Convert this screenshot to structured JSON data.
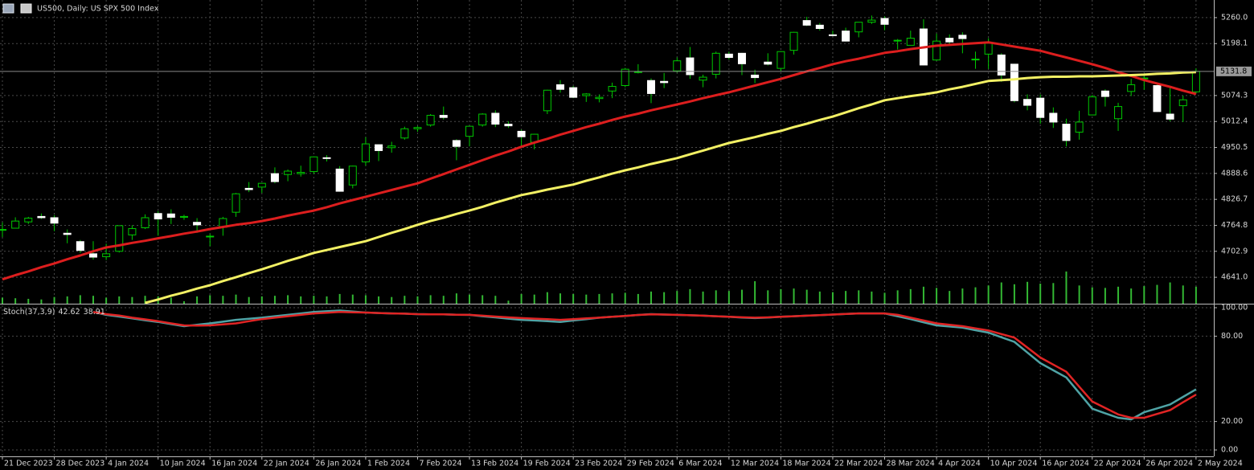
{
  "chart_data": [
    {
      "type": "candlestick",
      "title": "US500, Daily:  US SPX 500 Index",
      "categories": [
        "21 Dec 2023",
        null,
        null,
        null,
        "28 Dec 2023",
        null,
        null,
        null,
        "4 Jan 2024",
        null,
        null,
        null,
        "10 Jan 2024",
        null,
        null,
        null,
        "16 Jan 2024",
        null,
        null,
        null,
        "22 Jan 2024",
        null,
        null,
        null,
        "26 Jan 2024",
        null,
        null,
        null,
        "1 Feb 2024",
        null,
        null,
        null,
        "7 Feb 2024",
        null,
        null,
        null,
        "13 Feb 2024",
        null,
        null,
        null,
        "19 Feb 2024",
        null,
        null,
        null,
        "23 Feb 2024",
        null,
        null,
        null,
        "29 Feb 2024",
        null,
        null,
        null,
        "6 Mar 2024",
        null,
        null,
        null,
        "12 Mar 2024",
        null,
        null,
        null,
        "18 Mar 2024",
        null,
        null,
        null,
        "22 Mar 2024",
        null,
        null,
        null,
        "28 Mar 2024",
        null,
        null,
        null,
        "4 Apr 2024",
        null,
        null,
        null,
        "10 Apr 2024",
        null,
        null,
        null,
        "16 Apr 2024",
        null,
        null,
        null,
        "22 Apr 2024",
        null,
        null,
        null,
        "26 Apr 2024",
        null,
        null,
        null,
        "2 May 2024"
      ],
      "open": [
        4753,
        4758,
        4773,
        4786,
        4783,
        4746,
        4726,
        4697,
        4690,
        4703,
        4742,
        4759,
        4793,
        4792,
        4784,
        4772,
        4739,
        4760,
        4796,
        4853,
        4856,
        4888,
        4886,
        4888,
        4893,
        4926,
        4899,
        4861,
        4916,
        4957,
        4950,
        4973,
        4995,
        5004,
        5027,
        4967,
        4977,
        5004,
        5032,
        5006,
        4989,
        4963,
        5038,
        5100,
        5093,
        5074,
        5067,
        5085,
        5098,
        5131,
        5110,
        5108,
        5133,
        5164,
        5111,
        5125,
        5173,
        5175,
        5123,
        5154,
        5139,
        5182,
        5253,
        5242,
        5219,
        5228,
        5226,
        5249,
        5258,
        5206,
        5194,
        5233,
        5159,
        5211,
        5218,
        5161,
        5173,
        5171,
        5149,
        5065,
        5068,
        5032,
        5006,
        4987,
        5028,
        5085,
        5019,
        5084,
        5115,
        5098,
        5030,
        5050,
        5083
      ],
      "high": [
        4772,
        4784,
        4785,
        4793,
        4789,
        4755,
        4730,
        4727,
        4721,
        4764,
        4765,
        4791,
        4799,
        4803,
        4790,
        4782,
        4744,
        4785,
        4842,
        4868,
        4866,
        4903,
        4898,
        4907,
        4929,
        4932,
        4906,
        4907,
        4975,
        4958,
        4964,
        5000,
        5001,
        5030,
        5048,
        4970,
        5002,
        5032,
        5039,
        5013,
        4993,
        4983,
        5088,
        5111,
        5097,
        5080,
        5077,
        5105,
        5140,
        5149,
        5115,
        5128,
        5165,
        5190,
        5124,
        5179,
        5179,
        5176,
        5136,
        5175,
        5180,
        5226,
        5262,
        5247,
        5229,
        5236,
        5249,
        5265,
        5263,
        5209,
        5229,
        5256,
        5222,
        5220,
        5225,
        5179,
        5211,
        5175,
        5150,
        5077,
        5077,
        5046,
        5019,
        5038,
        5076,
        5089,
        5057,
        5114,
        5123,
        5102,
        5096,
        5074,
        5139
      ],
      "low": [
        4737,
        4758,
        4768,
        4780,
        4751,
        4722,
        4699,
        4683,
        4682,
        4700,
        4730,
        4756,
        4740,
        4768,
        4778,
        4747,
        4715,
        4740,
        4785,
        4844,
        4842,
        4865,
        4870,
        4881,
        4887,
        4917,
        4845,
        4853,
        4907,
        4918,
        4938,
        4969,
        4988,
        5000,
        5017,
        4920,
        4953,
        5000,
        4999,
        4997,
        4955,
        4946,
        5030,
        5081,
        5068,
        5059,
        5058,
        5068,
        5094,
        5127,
        5056,
        5092,
        5129,
        5114,
        5094,
        5115,
        5160,
        5123,
        5104,
        5146,
        5132,
        5172,
        5240,
        5229,
        5216,
        5203,
        5213,
        5245,
        5230,
        5184,
        5194,
        5146,
        5157,
        5197,
        5175,
        5138,
        5138,
        5107,
        5058,
        5039,
        5007,
        4997,
        4953,
        4969,
        5028,
        5048,
        4990,
        5073,
        5088,
        5035,
        5013,
        5011,
        5080
      ],
      "close": [
        4755,
        4775,
        4782,
        4783,
        4770,
        4743,
        4705,
        4689,
        4697,
        4764,
        4757,
        4783,
        4780,
        4784,
        4786,
        4766,
        4739,
        4781,
        4840,
        4850,
        4865,
        4869,
        4894,
        4891,
        4928,
        4925,
        4846,
        4906,
        4959,
        4943,
        4954,
        4995,
        4998,
        5027,
        5022,
        4953,
        5001,
        5030,
        5006,
        5002,
        4976,
        4982,
        5087,
        5089,
        5070,
        5078,
        5070,
        5096,
        5137,
        5131,
        5079,
        5105,
        5157,
        5124,
        5118,
        5175,
        5165,
        5150,
        5117,
        5149,
        5179,
        5225,
        5242,
        5234,
        5218,
        5204,
        5249,
        5254,
        5244,
        5206,
        5211,
        5147,
        5204,
        5202,
        5210,
        5161,
        5199,
        5123,
        5062,
        5051,
        5022,
        5011,
        4967,
        5011,
        5071,
        5072,
        5048,
        5100,
        5116,
        5036,
        5018,
        5064,
        5131.8
      ],
      "up_color": "#00c800",
      "down_color": "#ffffff",
      "volume": [
        10,
        9,
        8,
        7,
        11,
        12,
        14,
        13,
        10,
        12,
        11,
        13,
        12,
        10,
        4,
        12,
        14,
        13,
        15,
        11,
        12,
        13,
        14,
        12,
        13,
        12,
        16,
        15,
        14,
        12,
        11,
        13,
        12,
        14,
        13,
        17,
        15,
        14,
        13,
        5,
        16,
        15,
        19,
        17,
        16,
        15,
        16,
        17,
        18,
        16,
        20,
        19,
        21,
        24,
        20,
        22,
        21,
        23,
        37,
        22,
        24,
        25,
        23,
        20,
        19,
        21,
        22,
        20,
        18,
        22,
        24,
        28,
        26,
        21,
        25,
        27,
        30,
        35,
        32,
        36,
        33,
        34,
        53,
        30,
        27,
        26,
        28,
        25,
        29,
        31,
        35,
        30,
        28
      ],
      "volume_color": "#33b833",
      "vlim": [
        0,
        500
      ],
      "lines": [
        {
          "color": "#dc1e1e",
          "values": [
            4636,
            4646,
            4655,
            4665,
            4674,
            4684,
            4693,
            4703,
            4712,
            4717,
            4723,
            4728,
            4734,
            4739,
            4745,
            4750,
            4756,
            4761,
            4766,
            4770,
            4775,
            4781,
            4788,
            4794,
            4800,
            4808,
            4817,
            4825,
            4833,
            4841,
            4849,
            4857,
            4865,
            4876,
            4887,
            4898,
            4909,
            4920,
            4931,
            4941,
            4952,
            4962,
            4971,
            4981,
            4990,
            4999,
            5007,
            5016,
            5024,
            5031,
            5039,
            5046,
            5053,
            5060,
            5068,
            5075,
            5082,
            5090,
            5098,
            5106,
            5114,
            5123,
            5132,
            5140,
            5149,
            5156,
            5162,
            5169,
            5176,
            5180,
            5185,
            5189,
            5193,
            5195,
            5197,
            5199,
            5201,
            5196,
            5191,
            5186,
            5181,
            5173,
            5165,
            5157,
            5149,
            5140,
            5130,
            5121,
            5111,
            5103,
            5095,
            5086,
            5078
          ]
        },
        {
          "color": "#f2f064",
          "values": [
            null,
            null,
            null,
            null,
            null,
            null,
            null,
            null,
            null,
            null,
            null,
            4580,
            4588,
            4597,
            4605,
            4614,
            4622,
            4632,
            4641,
            4651,
            4660,
            4670,
            4680,
            4689,
            4699,
            4706,
            4713,
            4720,
            4727,
            4737,
            4747,
            4756,
            4766,
            4775,
            4783,
            4792,
            4800,
            4809,
            4819,
            4828,
            4837,
            4843,
            4850,
            4856,
            4862,
            4871,
            4879,
            4888,
            4896,
            4903,
            4911,
            4918,
            4925,
            4934,
            4943,
            4952,
            4961,
            4968,
            4975,
            4983,
            4990,
            4999,
            5007,
            5016,
            5024,
            5034,
            5044,
            5053,
            5063,
            5068,
            5073,
            5077,
            5082,
            5089,
            5095,
            5102,
            5109,
            5111,
            5113,
            5116,
            5118,
            5119,
            5119,
            5120,
            5120,
            5121,
            5122,
            5123,
            5124,
            5126,
            5127,
            5129,
            5130
          ]
        }
      ],
      "ylim": [
        4578,
        5302
      ],
      "yticks": [
        {
          "value": 5260,
          "label": "5260.0"
        },
        {
          "value": 5198.1,
          "label": "5198.1"
        },
        {
          "value": 5074.3,
          "label": "5074.3"
        },
        {
          "value": 5012.4,
          "label": "5012.4"
        },
        {
          "value": 4950.5,
          "label": "4950.5"
        },
        {
          "value": 4888.6,
          "label": "4888.6"
        },
        {
          "value": 4826.7,
          "label": "4826.7"
        },
        {
          "value": 4764.8,
          "label": "4764.8"
        },
        {
          "value": 4702.9,
          "label": "4702.9"
        },
        {
          "value": 4641,
          "label": "4641.0"
        }
      ],
      "grid": true
    },
    {
      "type": "line",
      "title": "Stoch(37,3,9)",
      "series": [
        {
          "color": "#4fa3a5",
          "values": [
            null,
            null,
            null,
            null,
            null,
            null,
            null,
            97,
            95,
            93.8,
            92.5,
            91.2,
            90,
            88.5,
            87,
            88,
            89,
            90.2,
            91.5,
            92.2,
            93,
            94,
            95,
            96,
            97,
            97.5,
            98,
            97.3,
            96.6,
            96.3,
            96,
            95.8,
            95.5,
            95.4,
            95.3,
            95.1,
            95,
            94,
            93.2,
            92.3,
            91.5,
            91,
            90.5,
            90,
            91,
            92,
            93,
            93.6,
            94.2,
            94.9,
            95.5,
            95.2,
            95,
            94.7,
            94.4,
            94,
            93.6,
            93.1,
            92.7,
            93.1,
            93.6,
            94,
            94.4,
            94.8,
            95.2,
            95.6,
            96,
            96,
            96,
            94,
            92,
            89.8,
            87.6,
            86.8,
            86,
            84.2,
            82.5,
            79.2,
            76,
            68.5,
            61,
            56,
            51,
            40,
            29,
            25.8,
            22.6,
            21.5,
            26.5,
            29.2,
            32,
            37.3,
            42.62
          ]
        },
        {
          "color": "#e02424",
          "values": [
            null,
            null,
            null,
            null,
            null,
            null,
            null,
            97,
            95.5,
            94.5,
            93,
            91.8,
            90.5,
            89,
            87.6,
            87.4,
            87.6,
            88.3,
            89,
            90.5,
            92,
            93,
            94,
            95,
            96,
            96.5,
            97,
            96.8,
            96.6,
            96.3,
            96,
            95.8,
            95.5,
            95.4,
            95.3,
            95.1,
            95,
            94.4,
            93.8,
            93.2,
            92.7,
            92.3,
            91.9,
            91.5,
            92,
            92.5,
            93,
            93.6,
            94.2,
            94.9,
            95.3,
            95.2,
            95,
            94.7,
            94.4,
            94,
            93.6,
            93.3,
            93,
            93.2,
            93.6,
            94,
            94.4,
            94.8,
            95.2,
            95.6,
            96,
            96,
            96,
            95,
            93,
            91,
            89,
            88,
            87,
            85.5,
            84,
            81.5,
            79,
            72,
            65,
            60,
            55,
            44.5,
            34,
            29.5,
            25,
            22.6,
            22.6,
            25.3,
            28,
            33.5,
            38.91
          ]
        }
      ],
      "ylim": [
        -4.5,
        101.7
      ],
      "yticks": [
        {
          "value": 100,
          "label": "100.00"
        },
        {
          "value": 80,
          "label": "80.00"
        },
        {
          "value": 20,
          "label": "20.00"
        },
        {
          "value": 0,
          "label": "0.00"
        }
      ],
      "grid": true
    }
  ]
}
